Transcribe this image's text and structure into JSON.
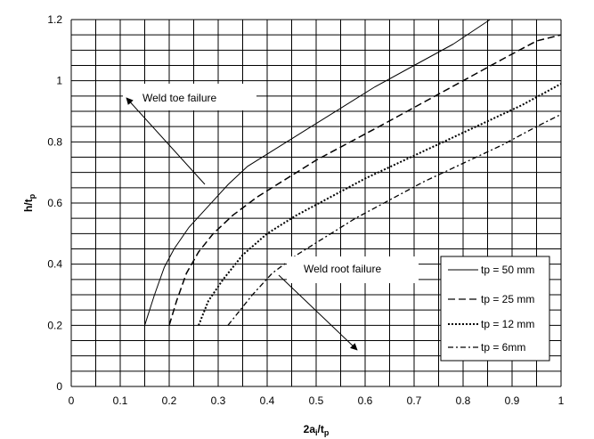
{
  "chart_data": {
    "type": "line",
    "xlabel": "2a",
    "xlabel_sub": "i",
    "xlabel_suffix": "/t",
    "xlabel_sub2": "p",
    "ylabel": "h/t",
    "ylabel_sub": "p",
    "xlim": [
      0,
      1
    ],
    "ylim": [
      0,
      1.2
    ],
    "x_ticks": [
      "0",
      "0.1",
      "0.2",
      "0.3",
      "0.4",
      "0.5",
      "0.6",
      "0.7",
      "0.8",
      "0.9",
      "1"
    ],
    "y_ticks": [
      "0",
      "0.2",
      "0.4",
      "0.6",
      "0.8",
      "1",
      "1.2"
    ],
    "grid": true,
    "legend_position": "bottom-right",
    "series": [
      {
        "name": "tp = 50 mm",
        "dash": "solid",
        "points": [
          [
            0.15,
            0.2
          ],
          [
            0.17,
            0.3
          ],
          [
            0.19,
            0.39
          ],
          [
            0.21,
            0.45
          ],
          [
            0.24,
            0.52
          ],
          [
            0.28,
            0.59
          ],
          [
            0.32,
            0.66
          ],
          [
            0.36,
            0.72
          ],
          [
            0.42,
            0.78
          ],
          [
            0.48,
            0.84
          ],
          [
            0.55,
            0.91
          ],
          [
            0.62,
            0.98
          ],
          [
            0.7,
            1.05
          ],
          [
            0.78,
            1.12
          ],
          [
            0.855,
            1.2
          ]
        ]
      },
      {
        "name": "tp = 25 mm",
        "dash": "long-dash",
        "points": [
          [
            0.2,
            0.2
          ],
          [
            0.215,
            0.28
          ],
          [
            0.235,
            0.37
          ],
          [
            0.26,
            0.44
          ],
          [
            0.29,
            0.5
          ],
          [
            0.33,
            0.56
          ],
          [
            0.38,
            0.62
          ],
          [
            0.44,
            0.68
          ],
          [
            0.5,
            0.74
          ],
          [
            0.57,
            0.8
          ],
          [
            0.64,
            0.86
          ],
          [
            0.72,
            0.93
          ],
          [
            0.8,
            1.0
          ],
          [
            0.88,
            1.07
          ],
          [
            0.95,
            1.13
          ],
          [
            1.0,
            1.15
          ]
        ]
      },
      {
        "name": "tp = 12 mm",
        "dash": "dotted",
        "points": [
          [
            0.26,
            0.2
          ],
          [
            0.28,
            0.28
          ],
          [
            0.31,
            0.35
          ],
          [
            0.35,
            0.43
          ],
          [
            0.4,
            0.5
          ],
          [
            0.46,
            0.56
          ],
          [
            0.53,
            0.62
          ],
          [
            0.6,
            0.68
          ],
          [
            0.68,
            0.74
          ],
          [
            0.76,
            0.8
          ],
          [
            0.84,
            0.86
          ],
          [
            0.92,
            0.92
          ],
          [
            1.0,
            0.99
          ]
        ]
      },
      {
        "name": "tp = 6mm",
        "dash": "dash-dot",
        "points": [
          [
            0.32,
            0.2
          ],
          [
            0.34,
            0.24
          ],
          [
            0.37,
            0.3
          ],
          [
            0.41,
            0.37
          ],
          [
            0.46,
            0.43
          ],
          [
            0.52,
            0.49
          ],
          [
            0.58,
            0.55
          ],
          [
            0.65,
            0.61
          ],
          [
            0.72,
            0.67
          ],
          [
            0.8,
            0.73
          ],
          [
            0.88,
            0.79
          ],
          [
            0.95,
            0.85
          ],
          [
            1.0,
            0.89
          ]
        ]
      }
    ],
    "annotations": [
      {
        "text": "Weld toe failure"
      },
      {
        "text": "Weld root failure"
      }
    ]
  }
}
